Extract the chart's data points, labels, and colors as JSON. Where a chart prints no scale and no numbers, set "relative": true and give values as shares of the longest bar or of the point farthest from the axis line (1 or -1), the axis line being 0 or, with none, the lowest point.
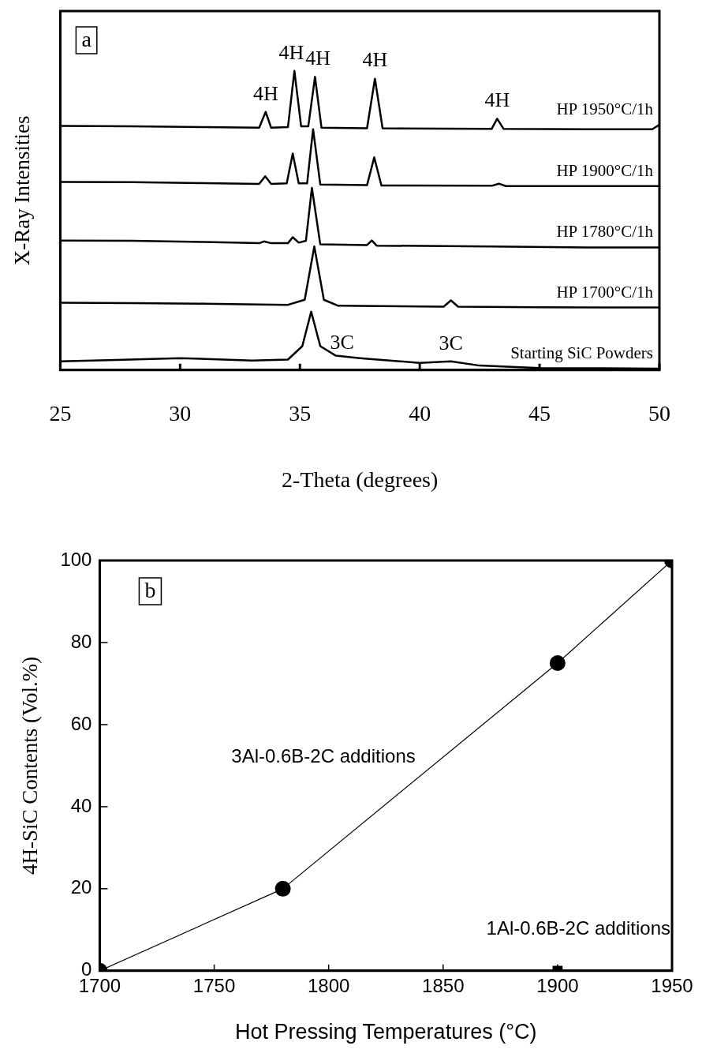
{
  "chart_data": [
    {
      "type": "line",
      "relative": true,
      "xlabel": "2-Theta (degrees)",
      "ylabel": "X-Ray Intensities",
      "xlim": [
        25,
        50
      ],
      "xticks": [
        25,
        30,
        35,
        40,
        45,
        50
      ],
      "tick_labels": "x",
      "grid": false,
      "legend": false,
      "marker": "none",
      "line_style": "solid",
      "annotations": [
        "a",
        {
          "text": "4H",
          "x": 33.57,
          "y": 0.863
        },
        {
          "text": "4H",
          "x": 34.77,
          "y": 1.0
        },
        {
          "text": "4H",
          "x": 35.63,
          "y": 0.98
        },
        {
          "text": "4H",
          "x": 38.13,
          "y": 0.974
        },
        {
          "text": "4H",
          "x": 43.23,
          "y": 0.84
        },
        {
          "text": "3C",
          "x": 35.47,
          "y": 0.195
        },
        {
          "text": "3C",
          "x": 41.3,
          "y": 0.029
        }
      ],
      "series": [
        {
          "name": "HP 1950°C/1h",
          "color": "#000000",
          "x": [
            25,
            28,
            31,
            33.3,
            33.57,
            33.8,
            34.5,
            34.77,
            35.05,
            35.35,
            35.63,
            35.9,
            37.8,
            38.13,
            38.45,
            43.0,
            43.23,
            43.5,
            47,
            49.7,
            50
          ],
          "values": [
            0.816,
            0.815,
            0.812,
            0.81,
            0.863,
            0.81,
            0.812,
            1.0,
            0.815,
            0.815,
            0.98,
            0.81,
            0.808,
            0.974,
            0.808,
            0.806,
            0.84,
            0.806,
            0.805,
            0.805,
            0.82
          ]
        },
        {
          "name": "HP 1900°C/1h",
          "color": "#000000",
          "x": [
            25,
            28,
            31,
            33.3,
            33.55,
            33.8,
            34.45,
            34.7,
            34.95,
            35.3,
            35.55,
            35.85,
            37.8,
            38.1,
            38.4,
            43.0,
            43.3,
            43.6,
            47,
            50
          ],
          "values": [
            0.629,
            0.628,
            0.625,
            0.622,
            0.648,
            0.622,
            0.624,
            0.724,
            0.624,
            0.624,
            0.805,
            0.62,
            0.618,
            0.711,
            0.617,
            0.616,
            0.623,
            0.615,
            0.615,
            0.615
          ]
        },
        {
          "name": "HP 1780°C/1h",
          "color": "#000000",
          "x": [
            25,
            28,
            31,
            33.3,
            33.5,
            33.8,
            34.5,
            34.7,
            34.95,
            35.25,
            35.5,
            35.85,
            37.8,
            38.0,
            38.2,
            43,
            47,
            50
          ],
          "values": [
            0.433,
            0.432,
            0.428,
            0.424,
            0.43,
            0.424,
            0.424,
            0.444,
            0.426,
            0.432,
            0.609,
            0.42,
            0.418,
            0.433,
            0.416,
            0.413,
            0.41,
            0.41
          ]
        },
        {
          "name": "HP 1700°C/1h",
          "color": "#000000",
          "x": [
            25,
            28,
            31,
            34.5,
            35.2,
            35.6,
            36.0,
            36.6,
            41.0,
            41.3,
            41.6,
            45,
            50
          ],
          "values": [
            0.225,
            0.224,
            0.222,
            0.218,
            0.235,
            0.413,
            0.235,
            0.215,
            0.212,
            0.233,
            0.212,
            0.21,
            0.209
          ]
        },
        {
          "name": "Starting SiC Powders",
          "color": "#000000",
          "x": [
            25,
            27,
            30,
            33,
            34.5,
            35.1,
            35.47,
            35.85,
            36.5,
            37.5,
            40,
            41.3,
            42.5,
            45,
            50
          ],
          "values": [
            0.029,
            0.033,
            0.04,
            0.032,
            0.035,
            0.08,
            0.195,
            0.08,
            0.048,
            0.04,
            0.024,
            0.029,
            0.015,
            0.007,
            0.005
          ]
        }
      ]
    },
    {
      "type": "line",
      "xlabel": "Hot Pressing Temperatures (°C)",
      "ylabel": "4H-SiC Contents (Vol.%)",
      "xlim": [
        1700,
        1950
      ],
      "xticks": [
        1700,
        1750,
        1800,
        1850,
        1900,
        1950
      ],
      "ylim": [
        0,
        100
      ],
      "yticks": [
        0,
        20,
        40,
        60,
        80,
        100
      ],
      "grid": false,
      "legend": false,
      "line_style": "solid",
      "annotations": [
        "b"
      ],
      "series": [
        {
          "name": "3Al-0.6B-2C additions",
          "color": "#000000",
          "marker": "circle",
          "x": [
            1700,
            1780,
            1900,
            1950
          ],
          "values": [
            0,
            20,
            75,
            100
          ]
        },
        {
          "name": "1Al-0.6B-2C additions",
          "color": "#000000",
          "type": "scatter",
          "marker": "square",
          "x": [
            1900
          ],
          "values": [
            0
          ]
        }
      ]
    }
  ]
}
